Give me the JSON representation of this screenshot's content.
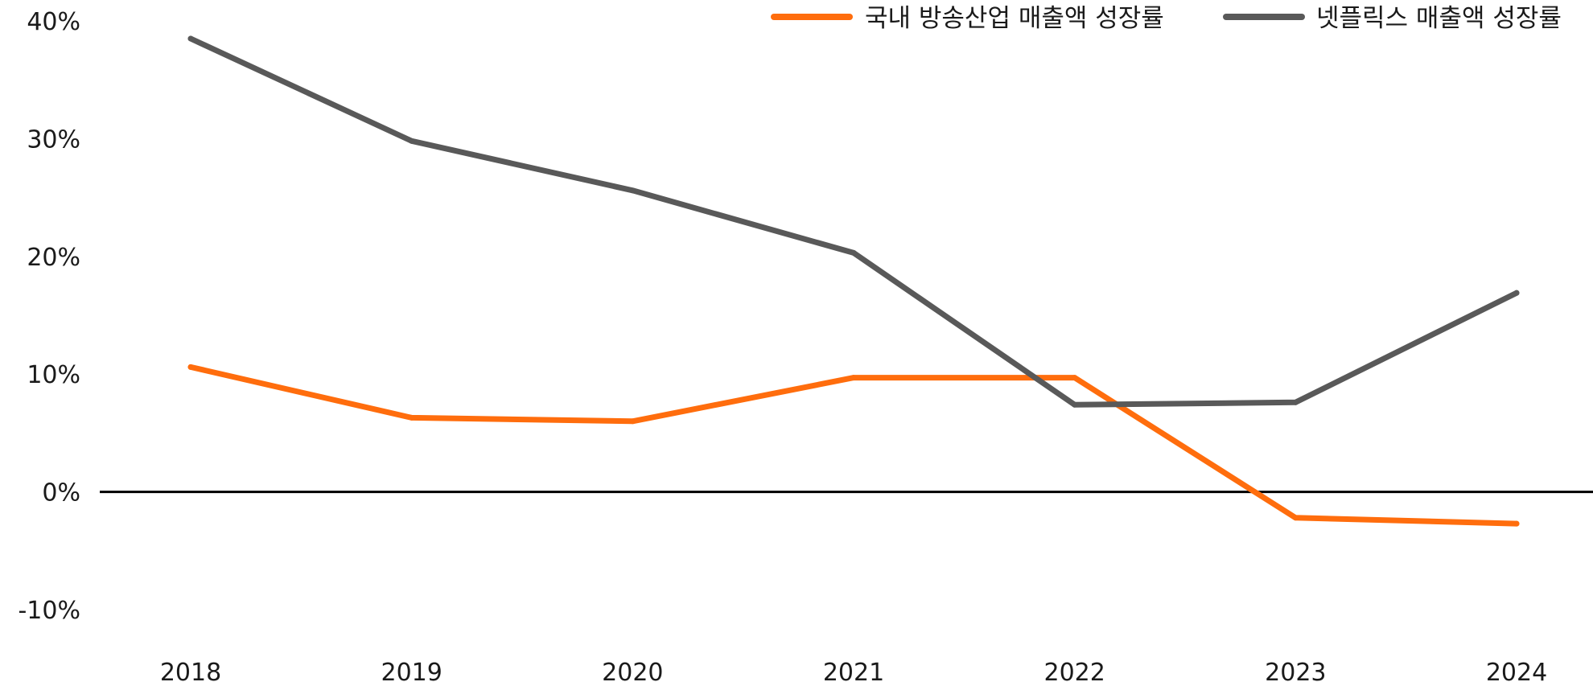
{
  "chart_data": {
    "type": "line",
    "categories": [
      "2018",
      "2019",
      "2020",
      "2021",
      "2022",
      "2023",
      "2024"
    ],
    "series": [
      {
        "name": "국내 방송산업 매출액 성장률",
        "color": "#ff6d0d",
        "values": [
          10.6,
          6.3,
          6.0,
          9.7,
          9.7,
          -2.2,
          -2.7
        ]
      },
      {
        "name": "넷플릭스 매출액 성장률",
        "color": "#595959",
        "values": [
          38.5,
          29.8,
          25.6,
          20.3,
          7.4,
          7.6,
          16.9
        ]
      }
    ],
    "ylim": [
      -10,
      40
    ],
    "yticks": [
      40,
      30,
      20,
      10,
      0,
      -10
    ],
    "ytick_labels": [
      "40%",
      "30%",
      "20%",
      "10%",
      "0%",
      "-10%"
    ],
    "legend_position": "top-right",
    "grid": false,
    "zero_line": true
  }
}
